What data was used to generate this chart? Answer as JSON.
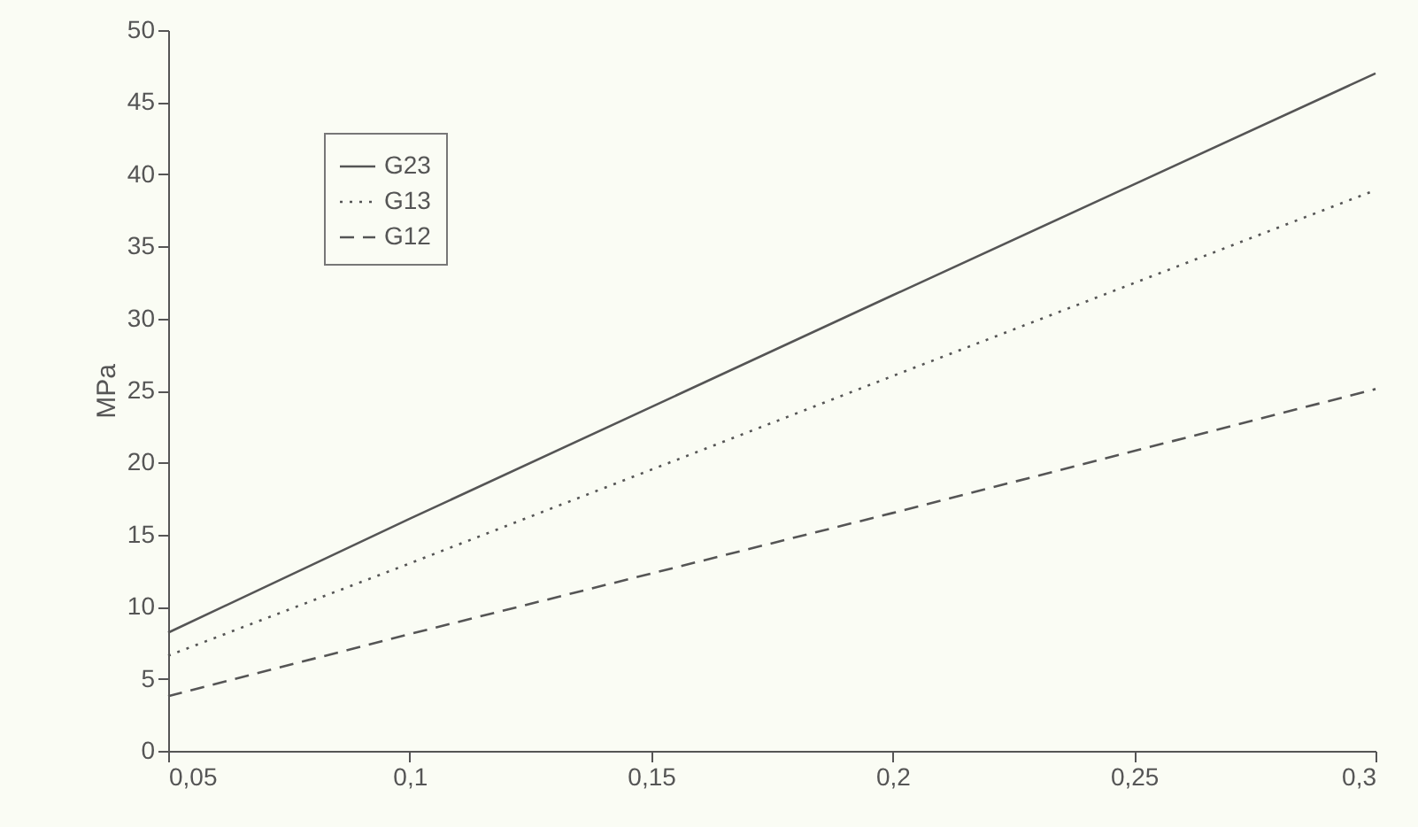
{
  "chart_data": {
    "type": "line",
    "ylabel": "MPa",
    "x": [
      0.05,
      0.1,
      0.2,
      0.3
    ],
    "series": [
      {
        "name": "G23",
        "color": "#555555",
        "line_style": "solid",
        "values": [
          8.2,
          16.1,
          31.6,
          47
        ]
      },
      {
        "name": "G13",
        "color": "#555555",
        "line_style": "dotted",
        "values": [
          6.6,
          13,
          26,
          38.9
        ]
      },
      {
        "name": "G12",
        "color": "#555555",
        "line_style": "dashed",
        "values": [
          3.8,
          8.1,
          16.5,
          25.1
        ]
      }
    ],
    "xlim": [
      0.05,
      0.3
    ],
    "xticks": [
      {
        "value": 0.05,
        "label": "0,05"
      },
      {
        "value": 0.1,
        "label": "0,1"
      },
      {
        "value": 0.15,
        "label": "0,15"
      },
      {
        "value": 0.2,
        "label": "0,2"
      },
      {
        "value": 0.25,
        "label": "0,25"
      },
      {
        "value": 0.3,
        "label": "0,3"
      }
    ],
    "ylim": [
      0,
      50
    ],
    "yticks": [
      0,
      5,
      10,
      15,
      20,
      25,
      30,
      35,
      40,
      45,
      50
    ],
    "grid": false,
    "legend": "top left",
    "marker": "none"
  }
}
